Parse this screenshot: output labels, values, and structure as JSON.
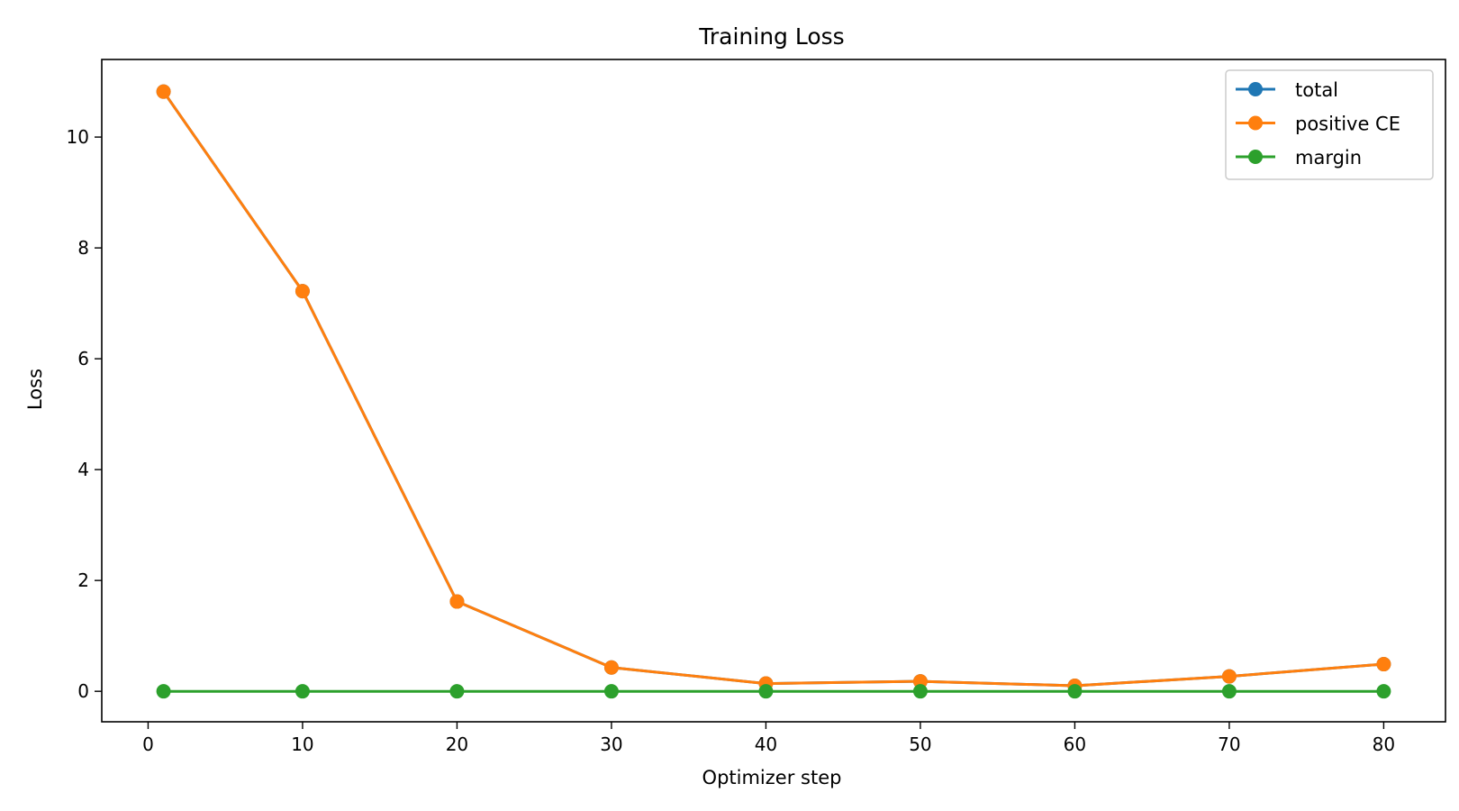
{
  "chart_data": {
    "type": "line",
    "title": "Training Loss",
    "xlabel": "Optimizer step",
    "ylabel": "Loss",
    "xlim": [
      -3,
      84
    ],
    "ylim": [
      -0.55,
      11.4
    ],
    "xticks": [
      0,
      10,
      20,
      30,
      40,
      50,
      60,
      70,
      80
    ],
    "yticks": [
      0,
      2,
      4,
      6,
      8,
      10
    ],
    "grid": false,
    "legend_position": "top-right",
    "x": [
      1,
      10,
      20,
      30,
      40,
      50,
      60,
      70,
      80
    ],
    "series": [
      {
        "name": "total",
        "color": "#1f77b4",
        "values": [
          10.82,
          7.22,
          1.62,
          0.43,
          0.14,
          0.18,
          0.1,
          0.27,
          0.49
        ]
      },
      {
        "name": "positive CE",
        "color": "#ff7f0e",
        "values": [
          10.82,
          7.22,
          1.62,
          0.43,
          0.14,
          0.18,
          0.1,
          0.27,
          0.49
        ]
      },
      {
        "name": "margin",
        "color": "#2ca02c",
        "values": [
          0,
          0,
          0,
          0,
          0,
          0,
          0,
          0,
          0
        ]
      }
    ]
  }
}
